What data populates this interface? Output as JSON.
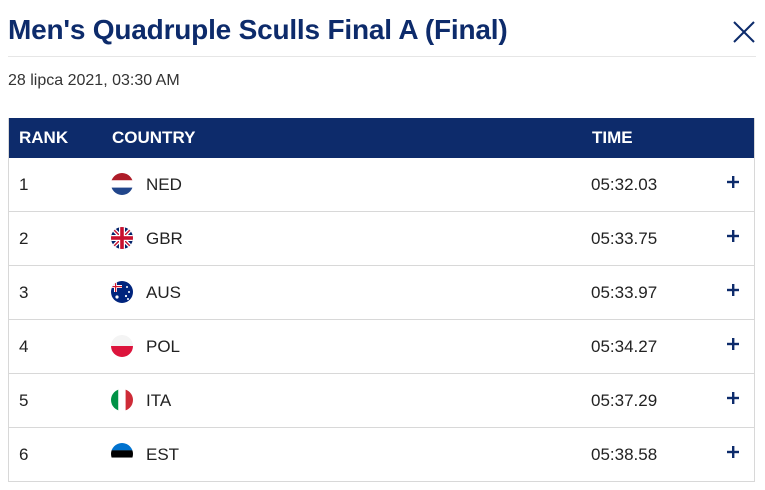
{
  "dialog": {
    "title": "Men's Quadruple Sculls Final A (Final)",
    "date": "28 lipca 2021, 03:30 AM"
  },
  "table": {
    "columns": {
      "rank": "RANK",
      "country": "COUNTRY",
      "time": "TIME"
    },
    "rows": [
      {
        "rank": "1",
        "country": "NED",
        "flag": "flag-ned-icon",
        "time": "05:32.03"
      },
      {
        "rank": "2",
        "country": "GBR",
        "flag": "flag-gbr-icon",
        "time": "05:33.75"
      },
      {
        "rank": "3",
        "country": "AUS",
        "flag": "flag-aus-icon",
        "time": "05:33.97"
      },
      {
        "rank": "4",
        "country": "POL",
        "flag": "flag-pol-icon",
        "time": "05:34.27"
      },
      {
        "rank": "5",
        "country": "ITA",
        "flag": "flag-ita-icon",
        "time": "05:37.29"
      },
      {
        "rank": "6",
        "country": "EST",
        "flag": "flag-est-icon",
        "time": "05:38.58"
      }
    ]
  },
  "colors": {
    "header_bg": "#0d2b6b",
    "title": "#0d2b6b",
    "border": "#d8d8d8"
  },
  "icons": {
    "close": "close-icon",
    "expand": "plus-icon"
  }
}
